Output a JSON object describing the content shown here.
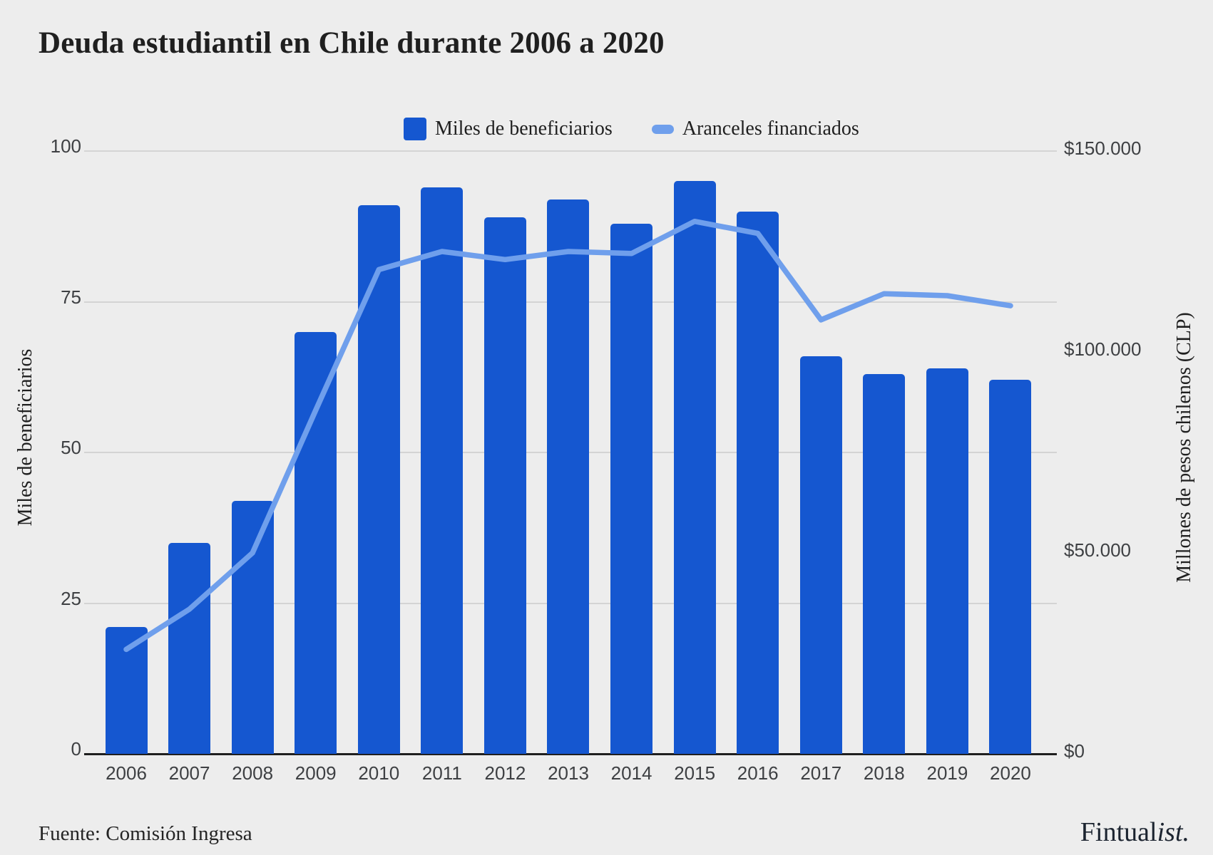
{
  "title": "Deuda estudiantil en Chile durante 2006 a 2020",
  "legend": {
    "bars_label": "Miles de beneficiarios",
    "line_label": "Aranceles financiados"
  },
  "axes": {
    "left": {
      "title": "Miles de beneficiarios",
      "ticks": [
        "100",
        "75",
        "50",
        "25",
        "0"
      ],
      "tick_values": [
        100,
        75,
        50,
        25,
        0
      ]
    },
    "right": {
      "title": "Millones de pesos chilenos (CLP)",
      "ticks": [
        "$150.000",
        "$100.000",
        "$50.000",
        "$0"
      ],
      "tick_values": [
        150000,
        100000,
        50000,
        0
      ]
    }
  },
  "footer": {
    "source": "Fuente: Comisión Ingresa",
    "brand_regular": "Fintual",
    "brand_italic": "ist."
  },
  "colors": {
    "background": "#EDEDED",
    "bar": "#1557D0",
    "line": "#6F9FEC",
    "grid": "#D4D4D4",
    "baseline": "#1F1F1F",
    "text_dark": "#1F1F1F",
    "tick_label": "#3E4043"
  },
  "chart_data": {
    "type": "bar",
    "title": "Deuda estudiantil en Chile durante 2006 a 2020",
    "categories": [
      "2006",
      "2007",
      "2008",
      "2009",
      "2010",
      "2011",
      "2012",
      "2013",
      "2014",
      "2015",
      "2016",
      "2017",
      "2018",
      "2019",
      "2020"
    ],
    "series": [
      {
        "name": "Miles de beneficiarios",
        "type": "bar",
        "axis": "left",
        "values": [
          21,
          35,
          42,
          70,
          91,
          94,
          89,
          92,
          88,
          95,
          90,
          66,
          63,
          64,
          62
        ]
      },
      {
        "name": "Aranceles financiados",
        "type": "line",
        "axis": "right",
        "values": [
          26000,
          36000,
          50000,
          85500,
          120500,
          125000,
          123000,
          125000,
          124500,
          132500,
          129500,
          108000,
          114500,
          114000,
          111500
        ]
      }
    ],
    "xlabel": "",
    "ylabel_left": "Miles de beneficiarios",
    "ylabel_right": "Millones de pesos chilenos (CLP)",
    "left_axis_range": [
      0,
      100
    ],
    "right_axis_range": [
      0,
      150000
    ],
    "grid": true,
    "legend_position": "top",
    "source": "Fuente: Comisión Ingresa"
  }
}
